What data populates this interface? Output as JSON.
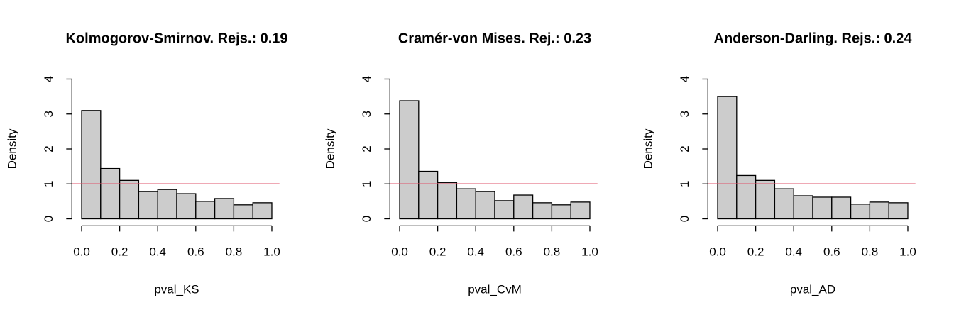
{
  "chart_data": [
    {
      "type": "histogram",
      "title": "Kolmogorov-Smirnov. Rejs.: 0.19",
      "x_label": "pval_KS",
      "y_label": "Density",
      "bins": [
        0,
        0.1,
        0.2,
        0.3,
        0.4,
        0.5,
        0.6,
        0.7,
        0.8,
        0.9,
        1.0
      ],
      "values": [
        3.1,
        1.44,
        1.1,
        0.78,
        0.84,
        0.72,
        0.5,
        0.58,
        0.4,
        0.46
      ],
      "color": "#cccccc",
      "hline": 1,
      "hline_color": "#df536b",
      "xlim": [
        -0.04,
        1.04
      ],
      "ylim": [
        -0.16,
        4.16
      ],
      "xticks": [
        {
          "value": 0,
          "label": "0.0"
        },
        0.2,
        0.4,
        0.6,
        0.8,
        {
          "value": 1,
          "label": "1.0"
        }
      ],
      "yticks": [
        0,
        1,
        2,
        3,
        4
      ]
    },
    {
      "type": "histogram",
      "title": "Cramér-von Mises. Rej.: 0.23",
      "x_label": "pval_CvM",
      "y_label": "Density",
      "bins": [
        0,
        0.1,
        0.2,
        0.3,
        0.4,
        0.5,
        0.6,
        0.7,
        0.8,
        0.9,
        1.0
      ],
      "values": [
        3.38,
        1.36,
        1.04,
        0.86,
        0.78,
        0.52,
        0.68,
        0.46,
        0.4,
        0.48
      ],
      "color": "#cccccc",
      "hline": 1,
      "hline_color": "#df536b",
      "xlim": [
        -0.04,
        1.04
      ],
      "ylim": [
        -0.16,
        4.16
      ],
      "xticks": [
        {
          "value": 0,
          "label": "0.0"
        },
        0.2,
        0.4,
        0.6,
        0.8,
        {
          "value": 1,
          "label": "1.0"
        }
      ],
      "yticks": [
        0,
        1,
        2,
        3,
        4
      ]
    },
    {
      "type": "histogram",
      "title": "Anderson-Darling. Rejs.: 0.24",
      "x_label": "pval_AD",
      "y_label": "Density",
      "bins": [
        0,
        0.1,
        0.2,
        0.3,
        0.4,
        0.5,
        0.6,
        0.7,
        0.8,
        0.9,
        1.0
      ],
      "values": [
        3.5,
        1.24,
        1.1,
        0.86,
        0.66,
        0.62,
        0.62,
        0.42,
        0.48,
        0.46
      ],
      "color": "#cccccc",
      "hline": 1,
      "hline_color": "#df536b",
      "xlim": [
        -0.04,
        1.04
      ],
      "ylim": [
        -0.16,
        4.16
      ],
      "xticks": [
        {
          "value": 0,
          "label": "0.0"
        },
        0.2,
        0.4,
        0.6,
        0.8,
        {
          "value": 1,
          "label": "1.0"
        }
      ],
      "yticks": [
        0,
        1,
        2,
        3,
        4
      ]
    }
  ]
}
